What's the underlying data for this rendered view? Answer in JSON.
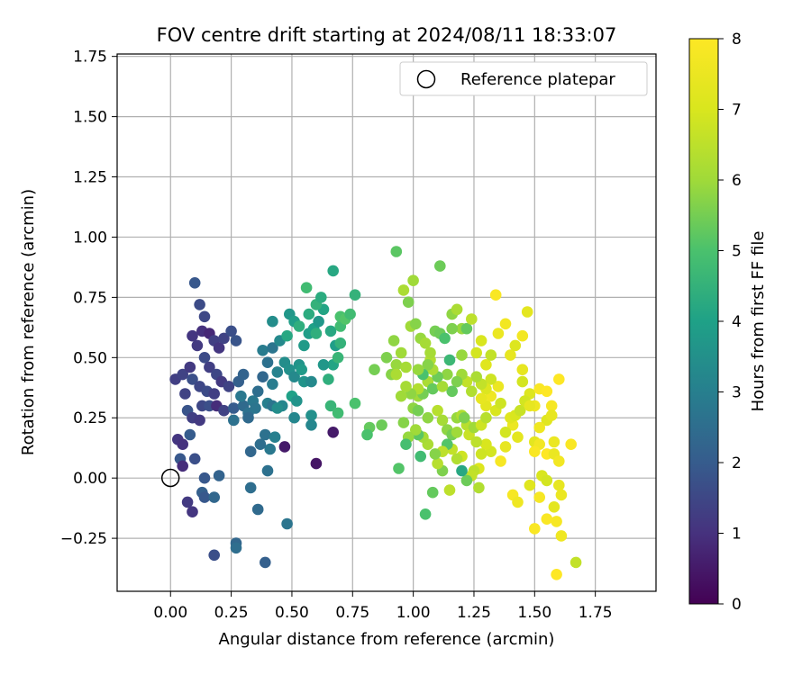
{
  "chart_data": {
    "type": "scatter",
    "title": "FOV centre drift starting at 2024/08/11 18:33:07",
    "xlabel": "Angular distance from reference (arcmin)",
    "ylabel": "Rotation from reference (arcmin)",
    "xlim": [
      -0.22,
      2.0
    ],
    "ylim": [
      -0.47,
      1.76
    ],
    "x_ticks": [
      0.0,
      0.25,
      0.5,
      0.75,
      1.0,
      1.25,
      1.5,
      1.75
    ],
    "x_tick_labels": [
      "0.00",
      "0.25",
      "0.50",
      "0.75",
      "1.00",
      "1.25",
      "1.50",
      "1.75"
    ],
    "y_ticks": [
      -0.25,
      0.0,
      0.25,
      0.5,
      0.75,
      1.0,
      1.25,
      1.5,
      1.75
    ],
    "y_tick_labels": [
      "−0.25",
      "0.00",
      "0.25",
      "0.50",
      "0.75",
      "1.00",
      "1.25",
      "1.50",
      "1.75"
    ],
    "grid": true,
    "legend": {
      "position": "upper-right",
      "entries": [
        "Reference platepar"
      ]
    },
    "reference_point": {
      "x": 0.0,
      "y": 0.0
    },
    "colorbar": {
      "label": "Hours from first FF file",
      "colormap": "viridis",
      "range": [
        0,
        8
      ],
      "ticks": [
        0,
        1,
        2,
        3,
        4,
        5,
        6,
        7,
        8
      ]
    },
    "points": [
      [
        0.02,
        0.41,
        1.3
      ],
      [
        0.05,
        0.43,
        1.4
      ],
      [
        0.08,
        0.46,
        1.2
      ],
      [
        0.09,
        0.59,
        1.1
      ],
      [
        0.1,
        0.81,
        1.9
      ],
      [
        0.12,
        0.72,
        1.6
      ],
      [
        0.14,
        0.67,
        1.5
      ],
      [
        0.11,
        0.55,
        1.2
      ],
      [
        0.13,
        0.61,
        1.0
      ],
      [
        0.16,
        0.6,
        0.8
      ],
      [
        0.18,
        0.57,
        1.3
      ],
      [
        0.2,
        0.54,
        1.1
      ],
      [
        0.22,
        0.58,
        1.4
      ],
      [
        0.25,
        0.61,
        1.7
      ],
      [
        0.27,
        0.57,
        1.8
      ],
      [
        0.14,
        0.5,
        1.6
      ],
      [
        0.16,
        0.46,
        1.3
      ],
      [
        0.19,
        0.43,
        1.5
      ],
      [
        0.21,
        0.4,
        1.2
      ],
      [
        0.24,
        0.38,
        1.4
      ],
      [
        0.09,
        0.41,
        1.7
      ],
      [
        0.12,
        0.38,
        1.5
      ],
      [
        0.15,
        0.36,
        1.6
      ],
      [
        0.18,
        0.35,
        1.3
      ],
      [
        0.06,
        0.35,
        1.4
      ],
      [
        0.07,
        0.28,
        1.8
      ],
      [
        0.09,
        0.25,
        1.3
      ],
      [
        0.12,
        0.24,
        1.2
      ],
      [
        0.13,
        0.3,
        1.5
      ],
      [
        0.16,
        0.3,
        1.7
      ],
      [
        0.19,
        0.3,
        0.9
      ],
      [
        0.22,
        0.28,
        1.4
      ],
      [
        0.26,
        0.29,
        2.0
      ],
      [
        0.03,
        0.16,
        1.1
      ],
      [
        0.05,
        0.14,
        1.0
      ],
      [
        0.08,
        0.18,
        2.0
      ],
      [
        0.04,
        0.08,
        1.9
      ],
      [
        0.05,
        0.05,
        0.9
      ],
      [
        0.1,
        0.08,
        1.7
      ],
      [
        0.14,
        0.0,
        1.9
      ],
      [
        0.13,
        -0.06,
        2.1
      ],
      [
        0.07,
        -0.1,
        1.2
      ],
      [
        0.09,
        -0.14,
        1.1
      ],
      [
        0.14,
        -0.08,
        1.9
      ],
      [
        0.18,
        -0.08,
        2.3
      ],
      [
        0.2,
        0.01,
        2.2
      ],
      [
        0.18,
        -0.32,
        1.7
      ],
      [
        0.27,
        -0.27,
        2.3
      ],
      [
        0.27,
        -0.29,
        2.5
      ],
      [
        0.39,
        -0.35,
        2.1
      ],
      [
        0.33,
        -0.04,
        2.5
      ],
      [
        0.36,
        -0.13,
        2.4
      ],
      [
        0.4,
        0.03,
        2.6
      ],
      [
        0.48,
        -0.19,
        2.7
      ],
      [
        0.28,
        0.4,
        2.1
      ],
      [
        0.3,
        0.3,
        2.4
      ],
      [
        0.32,
        0.27,
        2.6
      ],
      [
        0.34,
        0.32,
        2.8
      ],
      [
        0.36,
        0.36,
        2.5
      ],
      [
        0.38,
        0.42,
        2.3
      ],
      [
        0.4,
        0.48,
        2.6
      ],
      [
        0.42,
        0.39,
        2.9
      ],
      [
        0.44,
        0.44,
        3.1
      ],
      [
        0.35,
        0.29,
        2.7
      ],
      [
        0.3,
        0.43,
        2.2
      ],
      [
        0.33,
        0.11,
        2.3
      ],
      [
        0.37,
        0.14,
        2.5
      ],
      [
        0.39,
        0.18,
        2.6
      ],
      [
        0.41,
        0.12,
        2.8
      ],
      [
        0.43,
        0.17,
        3.0
      ],
      [
        0.26,
        0.24,
        2.6
      ],
      [
        0.29,
        0.34,
        2.8
      ],
      [
        0.32,
        0.25,
        2.4
      ],
      [
        0.4,
        0.31,
        3.0
      ],
      [
        0.42,
        0.3,
        2.7
      ],
      [
        0.46,
        0.3,
        3.2
      ],
      [
        0.38,
        0.53,
        2.9
      ],
      [
        0.42,
        0.54,
        2.7
      ],
      [
        0.45,
        0.57,
        3.3
      ],
      [
        0.47,
        0.48,
        3.4
      ],
      [
        0.49,
        0.45,
        3.5
      ],
      [
        0.51,
        0.42,
        3.3
      ],
      [
        0.53,
        0.47,
        3.6
      ],
      [
        0.55,
        0.55,
        3.8
      ],
      [
        0.57,
        0.6,
        3.9
      ],
      [
        0.59,
        0.62,
        4.0
      ],
      [
        0.61,
        0.65,
        3.7
      ],
      [
        0.63,
        0.7,
        4.1
      ],
      [
        0.55,
        0.4,
        3.6
      ],
      [
        0.58,
        0.4,
        3.3
      ],
      [
        0.57,
        0.68,
        4.3
      ],
      [
        0.49,
        0.68,
        3.7
      ],
      [
        0.51,
        0.65,
        3.9
      ],
      [
        0.42,
        0.65,
        3.4
      ],
      [
        0.5,
        0.34,
        4.0
      ],
      [
        0.51,
        0.25,
        3.2
      ],
      [
        0.48,
        0.59,
        4.2
      ],
      [
        0.53,
        0.63,
        4.4
      ],
      [
        0.56,
        0.79,
        4.8
      ],
      [
        0.6,
        0.72,
        4.5
      ],
      [
        0.62,
        0.75,
        4.3
      ],
      [
        0.66,
        0.61,
        4.2
      ],
      [
        0.68,
        0.55,
        3.9
      ],
      [
        0.7,
        0.56,
        4.5
      ],
      [
        0.7,
        0.63,
        4.8
      ],
      [
        0.67,
        0.47,
        4.1
      ],
      [
        0.65,
        0.41,
        4.4
      ],
      [
        0.69,
        0.5,
        4.6
      ],
      [
        0.7,
        0.67,
        5.0
      ],
      [
        0.72,
        0.66,
        5.1
      ],
      [
        0.74,
        0.68,
        4.8
      ],
      [
        0.76,
        0.76,
        4.5
      ],
      [
        0.67,
        0.86,
        4.2
      ],
      [
        0.6,
        0.6,
        4.4
      ],
      [
        0.63,
        0.47,
        3.7
      ],
      [
        0.54,
        0.45,
        3.8
      ],
      [
        0.58,
        0.26,
        3.5
      ],
      [
        0.58,
        0.22,
        3.2
      ],
      [
        0.52,
        0.32,
        3.6
      ],
      [
        0.44,
        0.29,
        3.4
      ],
      [
        0.47,
        0.13,
        0.5
      ],
      [
        0.6,
        0.06,
        0.4
      ],
      [
        0.67,
        0.19,
        0.5
      ],
      [
        0.66,
        0.3,
        4.6
      ],
      [
        0.69,
        0.27,
        4.8
      ],
      [
        0.76,
        0.31,
        5.0
      ],
      [
        0.82,
        0.21,
        5.3
      ],
      [
        0.81,
        0.18,
        5.0
      ],
      [
        0.84,
        0.45,
        5.5
      ],
      [
        0.87,
        0.22,
        5.4
      ],
      [
        0.89,
        0.5,
        5.6
      ],
      [
        0.91,
        0.43,
        5.7
      ],
      [
        0.93,
        0.47,
        5.9
      ],
      [
        0.92,
        0.57,
        5.8
      ],
      [
        0.95,
        0.52,
        6.0
      ],
      [
        0.97,
        0.46,
        6.1
      ],
      [
        0.99,
        0.63,
        6.0
      ],
      [
        1.01,
        0.64,
        5.7
      ],
      [
        1.0,
        0.82,
        6.0
      ],
      [
        0.93,
        0.94,
        5.2
      ],
      [
        0.96,
        0.78,
        6.2
      ],
      [
        0.98,
        0.73,
        5.6
      ],
      [
        1.03,
        0.58,
        5.9
      ],
      [
        1.05,
        0.56,
        6.1
      ],
      [
        1.07,
        0.49,
        6.3
      ],
      [
        1.09,
        0.61,
        5.5
      ],
      [
        1.11,
        0.88,
        5.4
      ],
      [
        1.11,
        0.6,
        5.4
      ],
      [
        1.13,
        0.58,
        5.0
      ],
      [
        1.16,
        0.68,
        5.8
      ],
      [
        1.18,
        0.7,
        6.2
      ],
      [
        1.2,
        0.62,
        5.9
      ],
      [
        1.22,
        0.62,
        5.3
      ],
      [
        1.24,
        0.66,
        6.5
      ],
      [
        1.26,
        0.52,
        6.9
      ],
      [
        1.28,
        0.57,
        7.0
      ],
      [
        1.3,
        0.47,
        7.2
      ],
      [
        1.32,
        0.51,
        6.6
      ],
      [
        1.34,
        0.76,
        7.9
      ],
      [
        1.35,
        0.6,
        7.5
      ],
      [
        1.38,
        0.64,
        7.7
      ],
      [
        1.4,
        0.51,
        7.4
      ],
      [
        1.42,
        0.55,
        7.1
      ],
      [
        1.45,
        0.59,
        7.7
      ],
      [
        1.47,
        0.69,
        7.3
      ],
      [
        1.45,
        0.45,
        7.4
      ],
      [
        1.45,
        0.4,
        6.9
      ],
      [
        1.48,
        0.35,
        7.1
      ],
      [
        1.5,
        0.3,
        7.6
      ],
      [
        1.52,
        0.37,
        7.9
      ],
      [
        1.55,
        0.36,
        8.0
      ],
      [
        1.57,
        0.3,
        7.8
      ],
      [
        1.6,
        0.41,
        8.0
      ],
      [
        1.58,
        0.15,
        7.5
      ],
      [
        1.55,
        0.24,
        7.2
      ],
      [
        1.57,
        0.26,
        7.4
      ],
      [
        1.52,
        0.21,
        7.6
      ],
      [
        1.5,
        0.15,
        7.3
      ],
      [
        1.52,
        0.14,
        7.7
      ],
      [
        1.5,
        0.11,
        7.9
      ],
      [
        1.55,
        0.1,
        8.0
      ],
      [
        1.58,
        0.1,
        7.5
      ],
      [
        1.6,
        0.07,
        7.7
      ],
      [
        1.65,
        0.14,
        7.9
      ],
      [
        1.53,
        0.01,
        7.0
      ],
      [
        1.55,
        -0.01,
        6.9
      ],
      [
        1.6,
        -0.03,
        7.4
      ],
      [
        1.61,
        -0.07,
        7.5
      ],
      [
        1.58,
        -0.12,
        7.3
      ],
      [
        1.59,
        -0.18,
        7.8
      ],
      [
        1.61,
        -0.24,
        7.6
      ],
      [
        1.55,
        -0.17,
        7.9
      ],
      [
        1.52,
        -0.08,
        7.8
      ],
      [
        1.5,
        -0.21,
        7.9
      ],
      [
        1.59,
        -0.4,
        8.0
      ],
      [
        1.67,
        -0.35,
        6.6
      ],
      [
        1.41,
        -0.07,
        7.8
      ],
      [
        1.43,
        -0.1,
        7.6
      ],
      [
        1.48,
        -0.03,
        7.2
      ],
      [
        1.43,
        0.17,
        7.3
      ],
      [
        1.41,
        0.22,
        7.5
      ],
      [
        1.38,
        0.13,
        7.4
      ],
      [
        1.36,
        0.07,
        7.8
      ],
      [
        1.32,
        0.11,
        6.9
      ],
      [
        1.3,
        0.14,
        7.0
      ],
      [
        1.28,
        0.1,
        6.8
      ],
      [
        1.27,
        0.04,
        7.1
      ],
      [
        1.25,
        0.03,
        6.5
      ],
      [
        1.27,
        -0.04,
        6.3
      ],
      [
        1.24,
        0.01,
        6.6
      ],
      [
        1.22,
        -0.01,
        5.4
      ],
      [
        1.2,
        0.03,
        4.2
      ],
      [
        1.2,
        0.09,
        6.8
      ],
      [
        1.18,
        0.08,
        6.3
      ],
      [
        1.16,
        0.12,
        6.6
      ],
      [
        1.15,
        -0.05,
        6.5
      ],
      [
        1.12,
        0.03,
        5.6
      ],
      [
        1.1,
        0.06,
        6.4
      ],
      [
        1.08,
        -0.06,
        5.3
      ],
      [
        1.06,
        0.14,
        6.2
      ],
      [
        1.04,
        0.17,
        6.1
      ],
      [
        1.02,
        0.18,
        5.2
      ],
      [
        1.03,
        0.09,
        4.8
      ],
      [
        1.01,
        0.2,
        6.0
      ],
      [
        0.98,
        0.17,
        5.9
      ],
      [
        0.97,
        0.14,
        4.9
      ],
      [
        0.94,
        0.04,
        5.1
      ],
      [
        0.96,
        0.23,
        5.7
      ],
      [
        1.05,
        -0.15,
        5.0
      ],
      [
        1.0,
        0.29,
        5.8
      ],
      [
        1.02,
        0.34,
        6.0
      ],
      [
        1.04,
        0.35,
        5.5
      ],
      [
        1.06,
        0.4,
        6.2
      ],
      [
        1.08,
        0.37,
        5.3
      ],
      [
        1.1,
        0.28,
        6.4
      ],
      [
        1.12,
        0.24,
        6.1
      ],
      [
        1.14,
        0.2,
        5.8
      ],
      [
        1.16,
        0.18,
        5.5
      ],
      [
        1.18,
        0.25,
        5.9
      ],
      [
        1.2,
        0.26,
        6.3
      ],
      [
        1.22,
        0.22,
        6.4
      ],
      [
        1.23,
        0.18,
        6.7
      ],
      [
        1.25,
        0.21,
        6.0
      ],
      [
        1.26,
        0.15,
        6.5
      ],
      [
        1.28,
        0.22,
        6.8
      ],
      [
        1.3,
        0.25,
        6.4
      ],
      [
        1.3,
        0.3,
        7.3
      ],
      [
        1.32,
        0.34,
        7.6
      ],
      [
        1.34,
        0.28,
        7.0
      ],
      [
        1.36,
        0.31,
        6.8
      ],
      [
        1.35,
        0.38,
        7.5
      ],
      [
        1.38,
        0.19,
        6.9
      ],
      [
        1.4,
        0.25,
        7.2
      ],
      [
        1.42,
        0.26,
        7.0
      ],
      [
        1.44,
        0.28,
        6.7
      ],
      [
        1.46,
        0.32,
        6.9
      ],
      [
        1.48,
        0.3,
        7.4
      ],
      [
        1.32,
        0.41,
        6.8
      ],
      [
        1.3,
        0.37,
        7.1
      ],
      [
        1.28,
        0.33,
        7.4
      ],
      [
        1.28,
        0.39,
        6.6
      ],
      [
        1.26,
        0.42,
        6.2
      ],
      [
        1.24,
        0.36,
        6.3
      ],
      [
        1.22,
        0.4,
        6.6
      ],
      [
        1.2,
        0.43,
        6.0
      ],
      [
        1.18,
        0.4,
        5.6
      ],
      [
        1.16,
        0.36,
        5.3
      ],
      [
        1.14,
        0.43,
        5.8
      ],
      [
        1.12,
        0.38,
        6.1
      ],
      [
        1.1,
        0.42,
        5.4
      ],
      [
        1.08,
        0.45,
        6.2
      ],
      [
        1.06,
        0.47,
        5.7
      ],
      [
        1.04,
        0.43,
        5.0
      ],
      [
        1.02,
        0.37,
        6.3
      ],
      [
        0.99,
        0.35,
        5.8
      ],
      [
        0.97,
        0.38,
        6.1
      ],
      [
        0.95,
        0.34,
        6.0
      ],
      [
        0.93,
        0.43,
        6.2
      ],
      [
        1.21,
        0.25,
        5.6
      ],
      [
        1.18,
        0.19,
        6.0
      ],
      [
        1.14,
        0.14,
        5.1
      ],
      [
        1.12,
        0.11,
        6.5
      ],
      [
        1.09,
        0.1,
        5.7
      ],
      [
        1.06,
        0.25,
        5.8
      ],
      [
        1.02,
        0.28,
        5.5
      ],
      [
        1.15,
        0.49,
        4.7
      ],
      [
        1.2,
        0.51,
        5.9
      ],
      [
        1.16,
        0.62,
        5.6
      ],
      [
        1.02,
        0.45,
        5.9
      ],
      [
        1.07,
        0.52,
        6.1
      ]
    ]
  }
}
